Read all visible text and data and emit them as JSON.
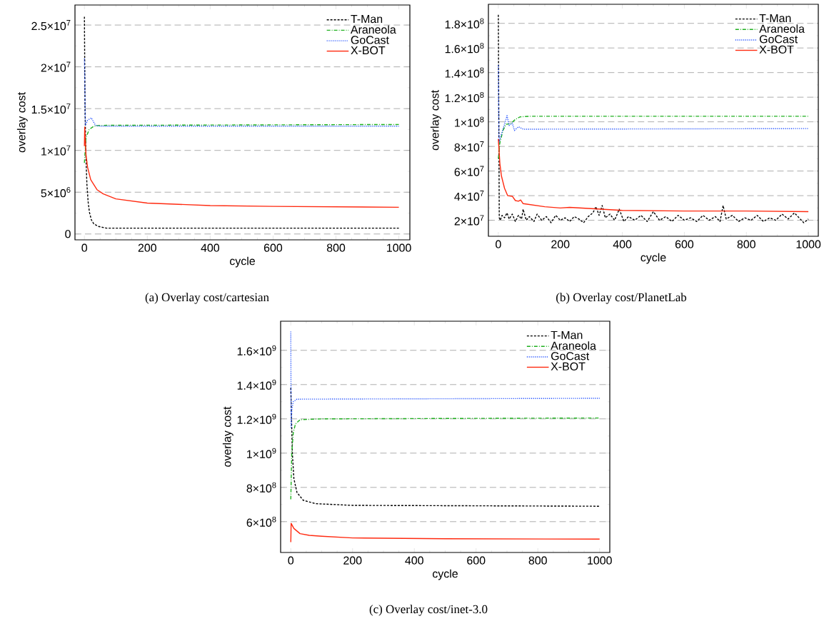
{
  "chart_data": [
    {
      "type": "line",
      "title": "(a) Overlay cost/cartesian",
      "xlabel": "cycle",
      "ylabel": "overlay cost",
      "xlim": [
        -30,
        1035
      ],
      "ylim": [
        -700000,
        27400000
      ],
      "xticks": [
        0,
        200,
        400,
        600,
        800,
        1000
      ],
      "yticks": [
        0,
        {
          "value": 5000000,
          "label": "5×10$^{6}$"
        },
        {
          "value": 10000000,
          "label": "1×10$^{7}$"
        },
        {
          "value": 15000000,
          "label": "1.5×10$^{7}$"
        },
        {
          "value": 20000000,
          "label": "2×10$^{7}$"
        },
        {
          "value": 25000000,
          "label": "2.5×10$^{7}$"
        }
      ],
      "grid": "y",
      "legend": "top right",
      "series": [
        {
          "name": "T-Man",
          "color": "#000000",
          "line_style": "dashed",
          "x": [
            0,
            2,
            5,
            8,
            12,
            16,
            22,
            30,
            45,
            70,
            150,
            1000
          ],
          "values": [
            26000000,
            15000000,
            9000000,
            5900000,
            3800000,
            2600000,
            1700000,
            1200000,
            900000,
            700000,
            700000,
            700000
          ]
        },
        {
          "name": "Araneola",
          "color": "#1fb01f",
          "line_style": "dashdot",
          "x": [
            0,
            5,
            15,
            30,
            50,
            1000
          ],
          "values": [
            8500000,
            11500000,
            12500000,
            12900000,
            13000000,
            13100000
          ]
        },
        {
          "name": "GoCast",
          "color": "#1f4fff",
          "line_style": "dotted",
          "x": [
            0,
            3,
            10,
            22,
            35,
            50,
            1000
          ],
          "values": [
            21000000,
            13000000,
            13600000,
            13900000,
            13000000,
            12900000,
            12900000
          ]
        },
        {
          "name": "X-BOT",
          "color": "#ff2a10",
          "line_style": "solid",
          "x": [
            0,
            1,
            5,
            10,
            20,
            40,
            60,
            100,
            200,
            400,
            600,
            1000
          ],
          "values": [
            10500000,
            12800000,
            9500000,
            8000000,
            6500000,
            5300000,
            4800000,
            4200000,
            3700000,
            3400000,
            3300000,
            3200000
          ]
        }
      ]
    },
    {
      "type": "line",
      "title": "(b) Overlay cost/PlanetLab",
      "xlabel": "cycle",
      "ylabel": "overlay cost",
      "xlim": [
        -32,
        1032
      ],
      "ylim": [
        7000000,
        195500000
      ],
      "xticks": [
        0,
        200,
        400,
        600,
        800,
        1000
      ],
      "yticks": [
        {
          "value": 20000000,
          "label": "2×10$^{7}$"
        },
        {
          "value": 40000000,
          "label": "4×10$^{7}$"
        },
        {
          "value": 60000000,
          "label": "6×10$^{7}$"
        },
        {
          "value": 80000000,
          "label": "8×10$^{7}$"
        },
        {
          "value": 100000000,
          "label": "1×10$^{8}$"
        },
        {
          "value": 120000000,
          "label": "1.2×10$^{8}$"
        },
        {
          "value": 140000000,
          "label": "1.4×10$^{8}$"
        },
        {
          "value": 160000000,
          "label": "1.6×10$^{8}$"
        },
        {
          "value": 180000000,
          "label": "1.8×10$^{8}$"
        }
      ],
      "grid": "y",
      "legend": "top right",
      "series": [
        {
          "name": "T-Man",
          "color": "#000000",
          "line_style": "dashed",
          "x": [
            0,
            3,
            6,
            12,
            20,
            28,
            35,
            45,
            55,
            65,
            75,
            80,
            90,
            100,
            115,
            125,
            140,
            155,
            170,
            185,
            200,
            215,
            230,
            245,
            260,
            275,
            290,
            305,
            315,
            325,
            335,
            345,
            360,
            375,
            390,
            405,
            420,
            440,
            460,
            480,
            500,
            520,
            540,
            560,
            580,
            600,
            620,
            640,
            660,
            680,
            700,
            715,
            725,
            735,
            755,
            775,
            795,
            815,
            835,
            855,
            875,
            895,
            915,
            935,
            955,
            970,
            985,
            1000
          ],
          "values": [
            187000000,
            22000000,
            20000000,
            24000000,
            22000000,
            26000000,
            21000000,
            25000000,
            19000000,
            24000000,
            21000000,
            29000000,
            20000000,
            23000000,
            19000000,
            25000000,
            20000000,
            23000000,
            18000000,
            24000000,
            20000000,
            22000000,
            19000000,
            23000000,
            21000000,
            18000000,
            23000000,
            26000000,
            31000000,
            24000000,
            32000000,
            22000000,
            25000000,
            20000000,
            29000000,
            19000000,
            23000000,
            20000000,
            24000000,
            19000000,
            27000000,
            20000000,
            23000000,
            19000000,
            24000000,
            20000000,
            22000000,
            19000000,
            24000000,
            20000000,
            23000000,
            19000000,
            32000000,
            21000000,
            24000000,
            19000000,
            22000000,
            20000000,
            24000000,
            19000000,
            22000000,
            20000000,
            25000000,
            21000000,
            26000000,
            22000000,
            18000000,
            21000000
          ]
        },
        {
          "name": "Araneola",
          "color": "#1fb01f",
          "line_style": "dashdot",
          "x": [
            0,
            5,
            15,
            25,
            40,
            55,
            70,
            100,
            1000
          ],
          "values": [
            70000000,
            83000000,
            93000000,
            98000000,
            98500000,
            102000000,
            104000000,
            104500000,
            104500000
          ]
        },
        {
          "name": "GoCast",
          "color": "#1f4fff",
          "line_style": "dotted",
          "x": [
            0,
            2,
            10,
            20,
            28,
            35,
            45,
            52,
            65,
            80,
            1000
          ],
          "values": [
            146000000,
            83000000,
            90000000,
            98000000,
            105000000,
            97000000,
            99000000,
            93000000,
            96000000,
            94000000,
            94500000
          ]
        },
        {
          "name": "X-BOT",
          "color": "#ff2a10",
          "line_style": "solid",
          "x": [
            0,
            5,
            10,
            20,
            30,
            45,
            55,
            65,
            72,
            80,
            150,
            200,
            230,
            300,
            400,
            600,
            800,
            1000
          ],
          "values": [
            86000000,
            66000000,
            56000000,
            46000000,
            40000000,
            39500000,
            36000000,
            35500000,
            36500000,
            33500000,
            31000000,
            30000000,
            30500000,
            29500000,
            28000000,
            27500000,
            27500000,
            27000000
          ]
        }
      ]
    },
    {
      "type": "line",
      "title": "(c) Overlay cost/inet-3.0",
      "xlabel": "cycle",
      "ylabel": "overlay cost",
      "xlim": [
        -33,
        1033
      ],
      "ylim": [
        420000000,
        1770000000
      ],
      "xticks": [
        0,
        200,
        400,
        600,
        800,
        1000
      ],
      "yticks": [
        {
          "value": 600000000,
          "label": "6×10$^{8}$"
        },
        {
          "value": 800000000,
          "label": "8×10$^{8}$"
        },
        {
          "value": 1000000000,
          "label": "1×10$^{9}$"
        },
        {
          "value": 1200000000,
          "label": "1.2×10$^{9}$"
        },
        {
          "value": 1400000000,
          "label": "1.4×10$^{9}$"
        },
        {
          "value": 1600000000,
          "label": "1.6×10$^{9}$"
        }
      ],
      "grid": "y",
      "legend": "top right",
      "series": [
        {
          "name": "T-Man",
          "color": "#000000",
          "line_style": "dashed",
          "x": [
            0,
            5,
            10,
            20,
            40,
            80,
            200,
            1000
          ],
          "values": [
            1380000000,
            1000000000,
            850000000,
            770000000,
            725000000,
            705000000,
            695000000,
            690000000
          ]
        },
        {
          "name": "Araneola",
          "color": "#1fb01f",
          "line_style": "dashdot",
          "x": [
            0,
            3,
            8,
            15,
            30,
            100,
            1000
          ],
          "values": [
            730000000,
            1000000000,
            1120000000,
            1170000000,
            1195000000,
            1200000000,
            1205000000
          ]
        },
        {
          "name": "GoCast",
          "color": "#1f4fff",
          "line_style": "dotted",
          "x": [
            0,
            1,
            3,
            8,
            20,
            1000
          ],
          "values": [
            1710000000,
            1150000000,
            1250000000,
            1300000000,
            1315000000,
            1320000000
          ]
        },
        {
          "name": "X-BOT",
          "color": "#ff2a10",
          "line_style": "solid",
          "x": [
            0,
            1,
            10,
            30,
            60,
            100,
            200,
            500,
            1000
          ],
          "values": [
            480000000,
            590000000,
            560000000,
            530000000,
            520000000,
            515000000,
            505000000,
            500000000,
            498000000
          ]
        }
      ]
    }
  ]
}
